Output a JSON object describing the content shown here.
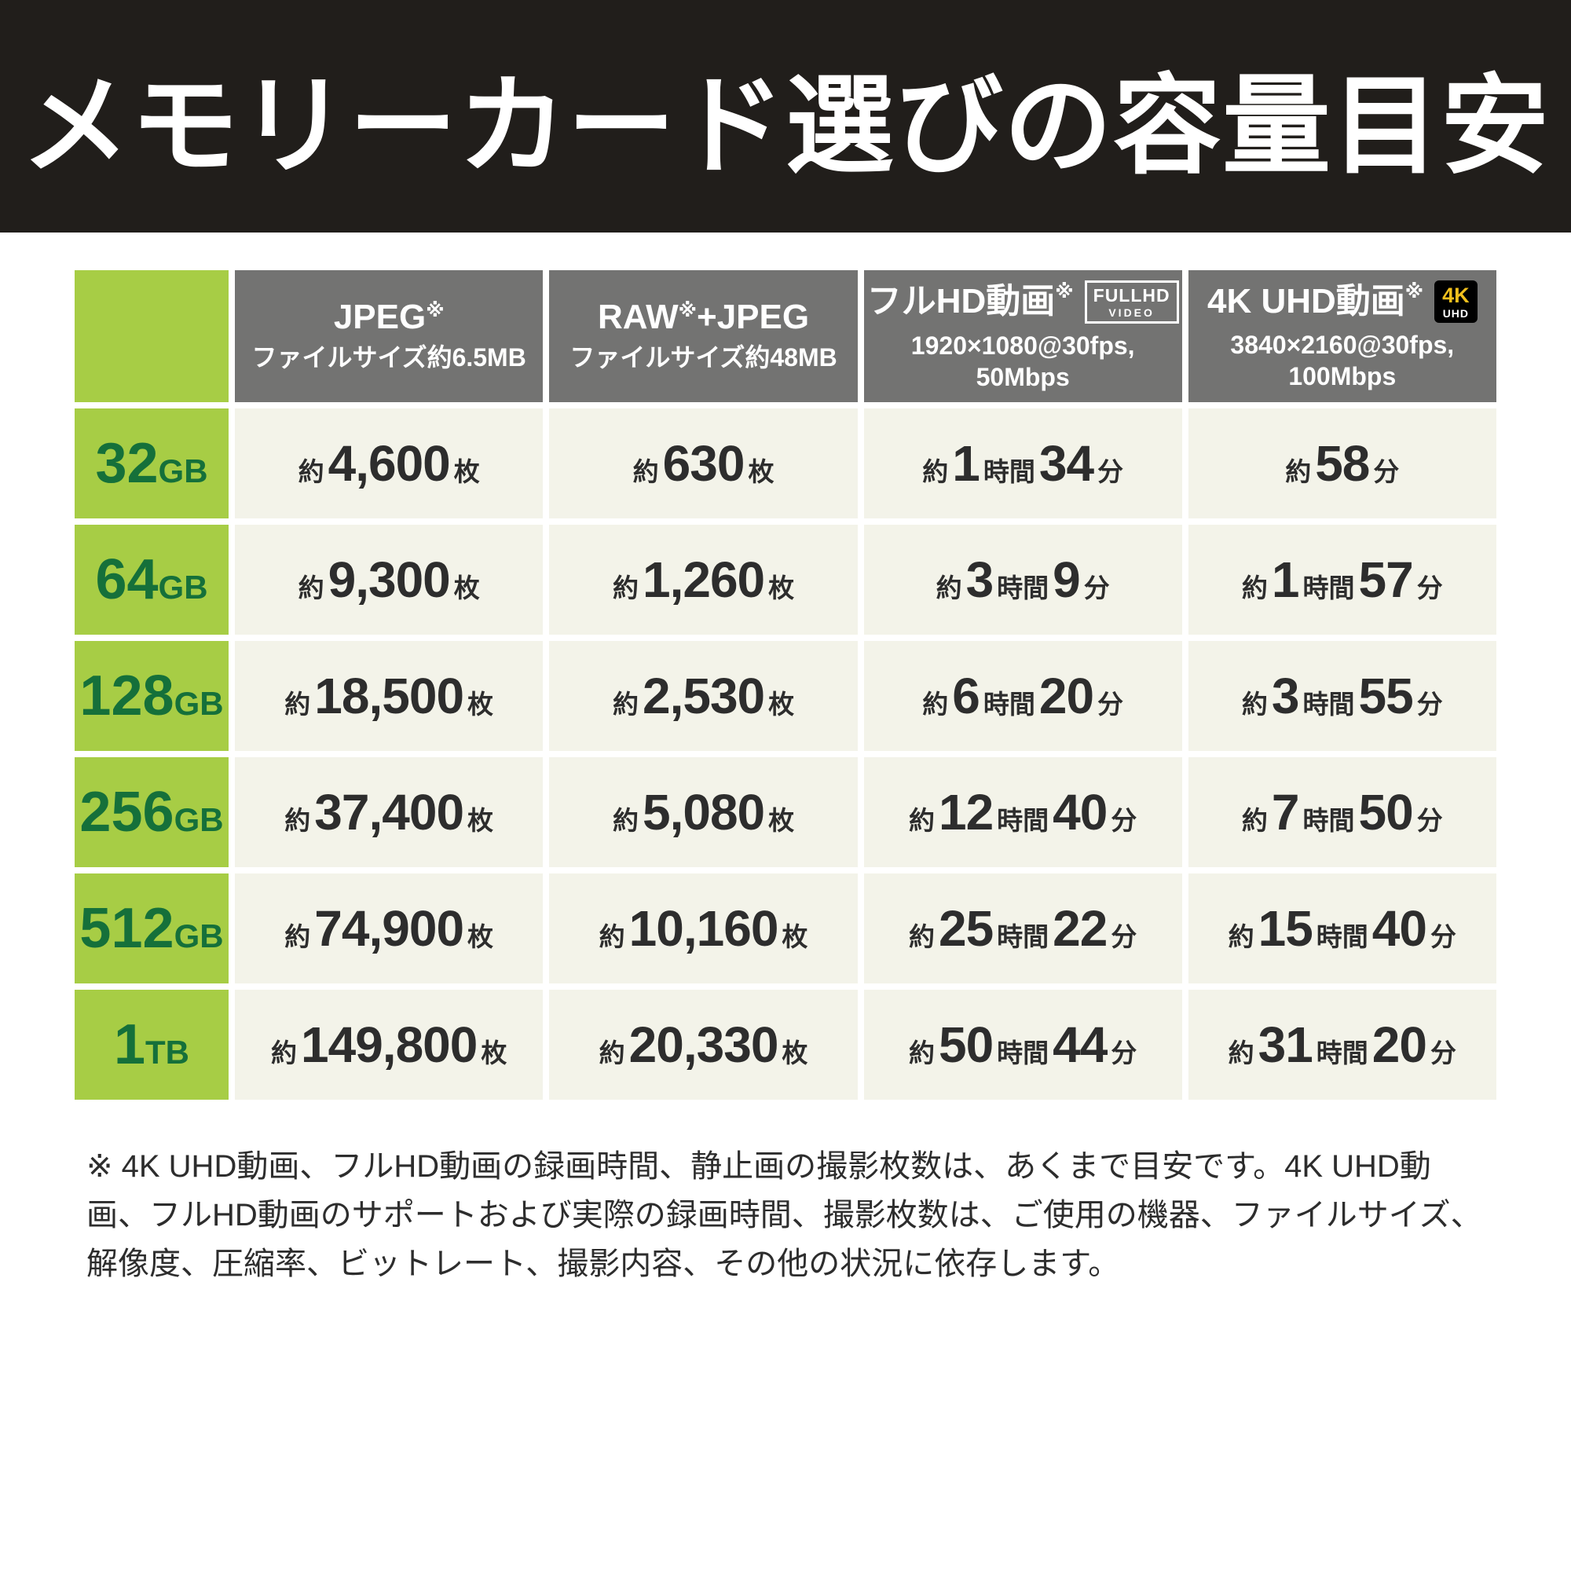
{
  "colors": {
    "banner": "#211e1b",
    "gray": "#737372",
    "green": "#a7cd45",
    "greentext": "#15703a",
    "cellbg": "#f3f3e9",
    "text": "#2d2d2d",
    "yellow": "#f2c01d"
  },
  "footnote": "※ 4K UHD動画、フルHD動画の録画時間、静止画の撮影枚数は、あくまで目安です。4K UHD動画、フルHD動画のサポートおよび実際の録画時間、撮影枚数は、ご使用の機器、ファイルサイズ、解像度、圧縮率、ビットレート、撮影内容、その他の状況に依存します。",
  "chart_data": {
    "type": "table",
    "title": "メモリーカード選びの容量目安",
    "columns": [
      {
        "key": "jpeg",
        "title": [
          [
            "JPEG",
            "t"
          ],
          [
            "※",
            "sup"
          ]
        ],
        "subtitle": [
          "ファイルサイズ約6.5MB"
        ],
        "badge": null
      },
      {
        "key": "raw-jpeg",
        "title": [
          [
            "RAW",
            "t"
          ],
          [
            "※",
            "sup"
          ],
          [
            "+JPEG",
            "t"
          ]
        ],
        "subtitle": [
          "ファイルサイズ約48MB"
        ],
        "badge": null
      },
      {
        "key": "fullhd",
        "title": [
          [
            "フルHD動画",
            "t"
          ],
          [
            "※",
            "sup"
          ]
        ],
        "subtitle": [
          "1920×1080@30fps,",
          "50Mbps"
        ],
        "badge": {
          "type": "fullhd",
          "lines": [
            "FULLHD",
            "VIDEO"
          ]
        }
      },
      {
        "key": "4k-uhd",
        "title": [
          [
            "4K UHD動画",
            "t"
          ],
          [
            "※",
            "sup"
          ]
        ],
        "subtitle": [
          "3840×2160@30fps,",
          "100Mbps"
        ],
        "badge": {
          "type": "4k",
          "lines": [
            "4K",
            "UHD"
          ]
        }
      }
    ],
    "rows": [
      {
        "key": "32gb",
        "label": [
          [
            "32",
            "b"
          ],
          [
            "GB",
            "s"
          ]
        ],
        "cells": [
          [
            [
              "約",
              "s"
            ],
            [
              "4,600",
              "b"
            ],
            [
              "枚",
              "s"
            ]
          ],
          [
            [
              "約",
              "s"
            ],
            [
              "630",
              "b"
            ],
            [
              "枚",
              "s"
            ]
          ],
          [
            [
              "約",
              "s"
            ],
            [
              "1",
              "b"
            ],
            [
              "時間",
              "s"
            ],
            [
              "34",
              "b"
            ],
            [
              "分",
              "s"
            ]
          ],
          [
            [
              "約",
              "s"
            ],
            [
              "58",
              "b"
            ],
            [
              "分",
              "s"
            ]
          ]
        ]
      },
      {
        "key": "64gb",
        "label": [
          [
            "64",
            "b"
          ],
          [
            "GB",
            "s"
          ]
        ],
        "cells": [
          [
            [
              "約",
              "s"
            ],
            [
              "9,300",
              "b"
            ],
            [
              "枚",
              "s"
            ]
          ],
          [
            [
              "約",
              "s"
            ],
            [
              "1,260",
              "b"
            ],
            [
              "枚",
              "s"
            ]
          ],
          [
            [
              "約",
              "s"
            ],
            [
              "3",
              "b"
            ],
            [
              "時間",
              "s"
            ],
            [
              "9",
              "b"
            ],
            [
              "分",
              "s"
            ]
          ],
          [
            [
              "約",
              "s"
            ],
            [
              "1",
              "b"
            ],
            [
              "時間",
              "s"
            ],
            [
              "57",
              "b"
            ],
            [
              "分",
              "s"
            ]
          ]
        ]
      },
      {
        "key": "128gb",
        "label": [
          [
            "128",
            "b"
          ],
          [
            "GB",
            "s"
          ]
        ],
        "cells": [
          [
            [
              "約",
              "s"
            ],
            [
              "18,500",
              "b"
            ],
            [
              "枚",
              "s"
            ]
          ],
          [
            [
              "約",
              "s"
            ],
            [
              "2,530",
              "b"
            ],
            [
              "枚",
              "s"
            ]
          ],
          [
            [
              "約",
              "s"
            ],
            [
              "6",
              "b"
            ],
            [
              "時間",
              "s"
            ],
            [
              "20",
              "b"
            ],
            [
              "分",
              "s"
            ]
          ],
          [
            [
              "約",
              "s"
            ],
            [
              "3",
              "b"
            ],
            [
              "時間",
              "s"
            ],
            [
              "55",
              "b"
            ],
            [
              "分",
              "s"
            ]
          ]
        ]
      },
      {
        "key": "256gb",
        "label": [
          [
            "256",
            "b"
          ],
          [
            "GB",
            "s"
          ]
        ],
        "cells": [
          [
            [
              "約",
              "s"
            ],
            [
              "37,400",
              "b"
            ],
            [
              "枚",
              "s"
            ]
          ],
          [
            [
              "約",
              "s"
            ],
            [
              "5,080",
              "b"
            ],
            [
              "枚",
              "s"
            ]
          ],
          [
            [
              "約",
              "s"
            ],
            [
              "12",
              "b"
            ],
            [
              "時間",
              "s"
            ],
            [
              "40",
              "b"
            ],
            [
              "分",
              "s"
            ]
          ],
          [
            [
              "約",
              "s"
            ],
            [
              "7",
              "b"
            ],
            [
              "時間",
              "s"
            ],
            [
              "50",
              "b"
            ],
            [
              "分",
              "s"
            ]
          ]
        ]
      },
      {
        "key": "512gb",
        "label": [
          [
            "512",
            "b"
          ],
          [
            "GB",
            "s"
          ]
        ],
        "cells": [
          [
            [
              "約",
              "s"
            ],
            [
              "74,900",
              "b"
            ],
            [
              "枚",
              "s"
            ]
          ],
          [
            [
              "約",
              "s"
            ],
            [
              "10,160",
              "b"
            ],
            [
              "枚",
              "s"
            ]
          ],
          [
            [
              "約",
              "s"
            ],
            [
              "25",
              "b"
            ],
            [
              "時間",
              "s"
            ],
            [
              "22",
              "b"
            ],
            [
              "分",
              "s"
            ]
          ],
          [
            [
              "約",
              "s"
            ],
            [
              "15",
              "b"
            ],
            [
              "時間",
              "s"
            ],
            [
              "40",
              "b"
            ],
            [
              "分",
              "s"
            ]
          ]
        ]
      },
      {
        "key": "1tb",
        "label": [
          [
            "1",
            "b"
          ],
          [
            "TB",
            "s"
          ]
        ],
        "cells": [
          [
            [
              "約",
              "s"
            ],
            [
              "149,800",
              "b"
            ],
            [
              "枚",
              "s"
            ]
          ],
          [
            [
              "約",
              "s"
            ],
            [
              "20,330",
              "b"
            ],
            [
              "枚",
              "s"
            ]
          ],
          [
            [
              "約",
              "s"
            ],
            [
              "50",
              "b"
            ],
            [
              "時間",
              "s"
            ],
            [
              "44",
              "b"
            ],
            [
              "分",
              "s"
            ]
          ],
          [
            [
              "約",
              "s"
            ],
            [
              "31",
              "b"
            ],
            [
              "時間",
              "s"
            ],
            [
              "20",
              "b"
            ],
            [
              "分",
              "s"
            ]
          ]
        ]
      }
    ]
  }
}
